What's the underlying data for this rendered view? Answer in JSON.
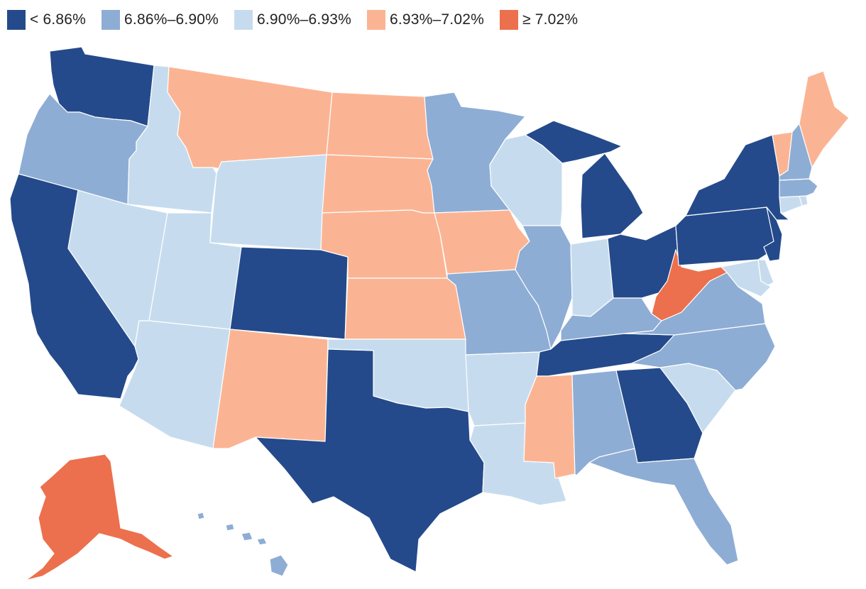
{
  "legend": {
    "items": [
      {
        "label": "< 6.86%",
        "color": "#244a8b",
        "class": "c1"
      },
      {
        "label": "6.86%–6.90%",
        "color": "#8eadd5",
        "class": "c2"
      },
      {
        "label": "6.90%–6.93%",
        "color": "#c6dcee",
        "class": "c3"
      },
      {
        "label": "6.93%–7.02%",
        "color": "#fbb493",
        "class": "c4"
      },
      {
        "label": "≥ 7.02%",
        "color": "#ec704d",
        "class": "c5"
      }
    ]
  },
  "map": {
    "states": [
      {
        "name": "WA",
        "class": "c1"
      },
      {
        "name": "OR",
        "class": "c2"
      },
      {
        "name": "CA",
        "class": "c1"
      },
      {
        "name": "ID",
        "class": "c3"
      },
      {
        "name": "NV",
        "class": "c3"
      },
      {
        "name": "MT",
        "class": "c4"
      },
      {
        "name": "WY",
        "class": "c3"
      },
      {
        "name": "UT",
        "class": "c3"
      },
      {
        "name": "AZ",
        "class": "c3"
      },
      {
        "name": "CO",
        "class": "c1"
      },
      {
        "name": "NM",
        "class": "c4"
      },
      {
        "name": "ND",
        "class": "c4"
      },
      {
        "name": "SD",
        "class": "c4"
      },
      {
        "name": "NE",
        "class": "c4"
      },
      {
        "name": "KS",
        "class": "c4"
      },
      {
        "name": "OK",
        "class": "c3"
      },
      {
        "name": "TX",
        "class": "c1"
      },
      {
        "name": "MN",
        "class": "c2"
      },
      {
        "name": "IA",
        "class": "c4"
      },
      {
        "name": "MO",
        "class": "c2"
      },
      {
        "name": "AR",
        "class": "c3"
      },
      {
        "name": "LA",
        "class": "c3"
      },
      {
        "name": "WI",
        "class": "c3"
      },
      {
        "name": "IL",
        "class": "c2"
      },
      {
        "name": "MI",
        "class": "c1"
      },
      {
        "name": "IN",
        "class": "c3"
      },
      {
        "name": "OH",
        "class": "c1"
      },
      {
        "name": "KY",
        "class": "c2"
      },
      {
        "name": "TN",
        "class": "c1"
      },
      {
        "name": "MS",
        "class": "c4"
      },
      {
        "name": "AL",
        "class": "c2"
      },
      {
        "name": "GA",
        "class": "c1"
      },
      {
        "name": "FL",
        "class": "c2"
      },
      {
        "name": "SC",
        "class": "c3"
      },
      {
        "name": "NC",
        "class": "c2"
      },
      {
        "name": "VA",
        "class": "c2"
      },
      {
        "name": "WV",
        "class": "c5"
      },
      {
        "name": "PA",
        "class": "c1"
      },
      {
        "name": "NY",
        "class": "c1"
      },
      {
        "name": "NJ",
        "class": "c1"
      },
      {
        "name": "MD",
        "class": "c3"
      },
      {
        "name": "DE",
        "class": "c3"
      },
      {
        "name": "CT",
        "class": "c3"
      },
      {
        "name": "RI",
        "class": "c3"
      },
      {
        "name": "MA",
        "class": "c2"
      },
      {
        "name": "VT",
        "class": "c4"
      },
      {
        "name": "NH",
        "class": "c2"
      },
      {
        "name": "ME",
        "class": "c4"
      },
      {
        "name": "AK",
        "class": "c5"
      },
      {
        "name": "HI",
        "class": "c2"
      }
    ]
  }
}
